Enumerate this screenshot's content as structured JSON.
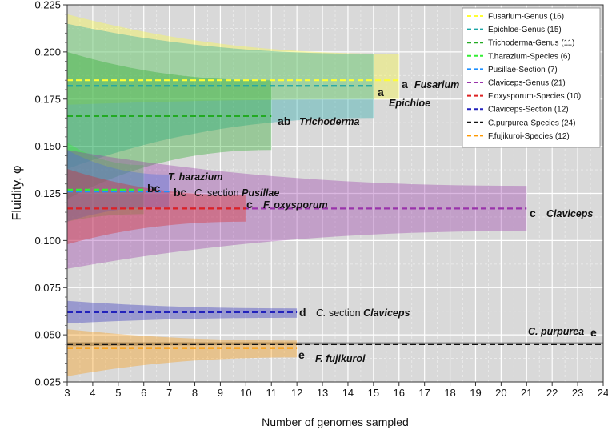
{
  "chart_data": {
    "type": "line",
    "xlabel": "Number of genomes sampled",
    "ylabel": "Fluidity, φ",
    "xlim": [
      3,
      24
    ],
    "ylim": [
      0.025,
      0.225
    ],
    "xticks": [
      3,
      4,
      5,
      6,
      7,
      8,
      9,
      10,
      11,
      12,
      13,
      14,
      15,
      16,
      17,
      18,
      19,
      20,
      21,
      22,
      23,
      24
    ],
    "yticks": [
      0.025,
      0.05,
      0.075,
      0.1,
      0.125,
      0.15,
      0.175,
      0.2,
      0.225
    ],
    "ytick_labels": [
      "0.025",
      "0.050",
      "0.075",
      "0.100",
      "0.125",
      "0.150",
      "0.175",
      "0.200",
      "0.225"
    ],
    "grid": true,
    "legend_position": "top-right",
    "series": [
      {
        "name": "Fusarium-Genus (16)",
        "color": "#ffff33",
        "x_end": 16,
        "fluidity": 0.185,
        "band": {
          "start": [
            0.172,
            0.22
          ],
          "end": [
            0.175,
            0.199
          ]
        },
        "letter": "a",
        "label_prefix": "",
        "label_italic": "Fusarium",
        "label_suffix": ""
      },
      {
        "name": "Epichloe-Genus (15)",
        "color": "#1aa5a5",
        "x_end": 15,
        "fluidity": 0.182,
        "band": {
          "start": [
            0.138,
            0.215
          ],
          "end": [
            0.165,
            0.199
          ]
        },
        "letter": "a",
        "label_prefix": "",
        "label_italic": "Epichloe",
        "label_suffix": ""
      },
      {
        "name": "Trichoderma-Genus (11)",
        "color": "#22aa22",
        "x_end": 11,
        "fluidity": 0.166,
        "band": {
          "start": [
            0.122,
            0.2
          ],
          "end": [
            0.148,
            0.185
          ]
        },
        "letter": "ab",
        "label_prefix": "",
        "label_italic": "Trichoderma",
        "label_suffix": ""
      },
      {
        "name": "T.harazium-Species (6)",
        "color": "#33ee33",
        "x_end": 6,
        "fluidity": 0.127,
        "band": {
          "start": [
            0.11,
            0.152
          ],
          "end": [
            0.114,
            0.14
          ]
        },
        "letter": "bc",
        "label_prefix": "",
        "label_italic": "T. harazium",
        "label_suffix": ""
      },
      {
        "name": "Pusillae-Section (7)",
        "color": "#1e90ff",
        "x_end": 7,
        "fluidity": 0.126,
        "band": {
          "start": [
            0.11,
            0.148
          ],
          "end": [
            0.118,
            0.135
          ]
        },
        "letter": "bc",
        "label_prefix": "C.",
        "label_italic": "",
        "label_suffix": " section Pusillae"
      },
      {
        "name": "Claviceps-Genus (21)",
        "color": "#9933aa",
        "x_end": 21,
        "fluidity": 0.117,
        "band": {
          "start": [
            0.085,
            0.148
          ],
          "end": [
            0.105,
            0.129
          ]
        },
        "letter": "c",
        "label_prefix": "",
        "label_italic": "Claviceps",
        "label_suffix": ""
      },
      {
        "name": "F.oxysporum-Species (10)",
        "color": "#dd2222",
        "x_end": 10,
        "fluidity": 0.117,
        "band": {
          "start": [
            0.098,
            0.138
          ],
          "end": [
            0.11,
            0.124
          ]
        },
        "letter": "c",
        "label_prefix": "",
        "label_italic": "F. oxysporum",
        "label_suffix": ""
      },
      {
        "name": "Claviceps-Section (12)",
        "color": "#2222bb",
        "x_end": 12,
        "fluidity": 0.062,
        "band": {
          "start": [
            0.056,
            0.068
          ],
          "end": [
            0.059,
            0.064
          ]
        },
        "letter": "d",
        "label_prefix": "C.",
        "label_italic": "",
        "label_suffix": " section Claviceps"
      },
      {
        "name": "C.purpurea-Species (24)",
        "color": "#111111",
        "x_end": 24,
        "fluidity": 0.045,
        "band": {
          "start": [
            0.044,
            0.046
          ],
          "end": [
            0.045,
            0.046
          ]
        },
        "letter": "e",
        "label_prefix": "",
        "label_italic": "C. purpurea",
        "label_suffix": ""
      },
      {
        "name": "F.fujikuroi-Species (12)",
        "color": "#ff9900",
        "x_end": 12,
        "fluidity": 0.043,
        "band": {
          "start": [
            0.028,
            0.053
          ],
          "end": [
            0.038,
            0.047
          ]
        },
        "letter": "e",
        "label_prefix": "",
        "label_italic": "F. fujikuroi",
        "label_suffix": ""
      }
    ]
  }
}
